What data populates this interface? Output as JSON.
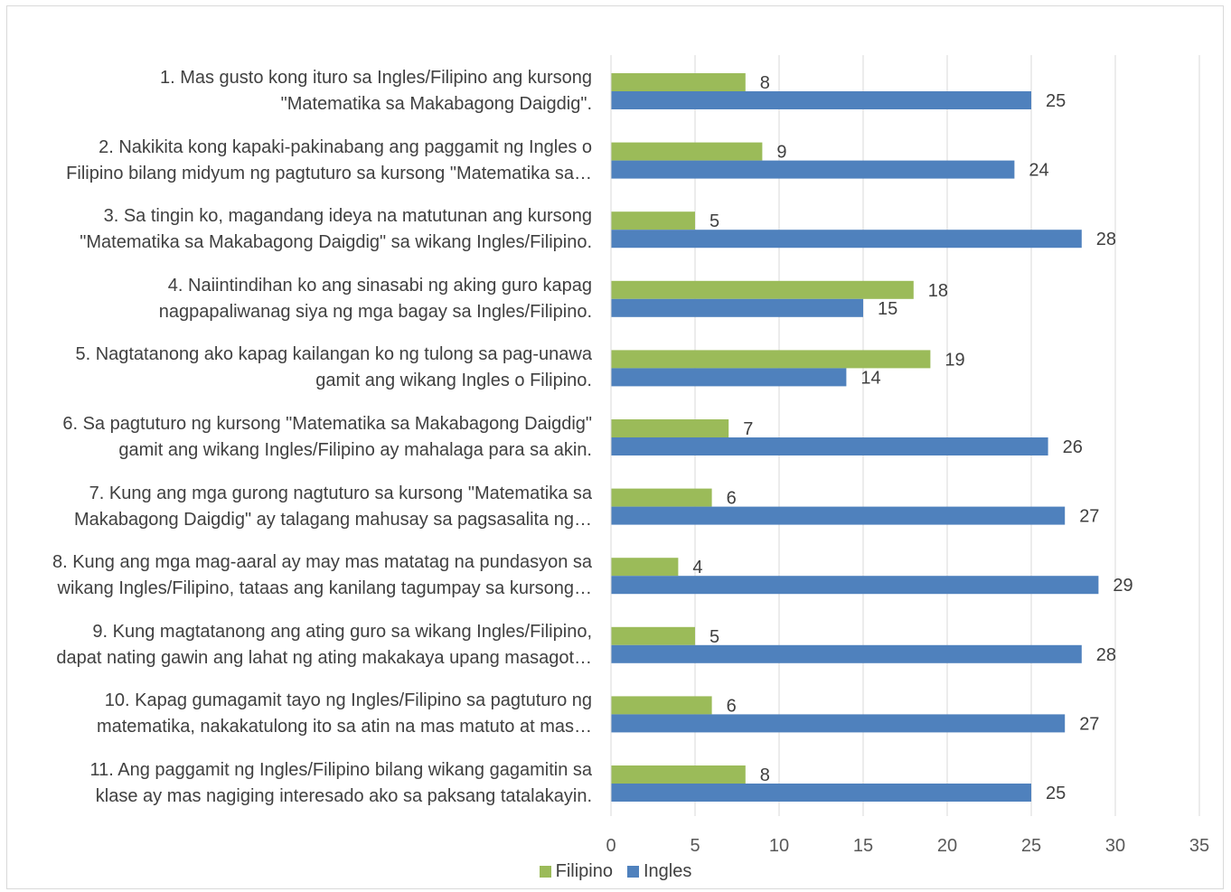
{
  "chart_data": {
    "type": "bar",
    "orientation": "horizontal",
    "title": "",
    "xlabel": "",
    "ylabel": "",
    "xlim": [
      0,
      35
    ],
    "x_ticks": [
      0,
      5,
      10,
      15,
      20,
      25,
      30,
      35
    ],
    "grid": "vertical",
    "legend_position": "bottom",
    "categories": [
      [
        "1. Mas gusto kong ituro sa Ingles/Filipino ang kursong",
        "\"Matematika sa Makabagong Daigdig\"."
      ],
      [
        "2. Nakikita kong kapaki-pakinabang ang paggamit ng Ingles o",
        "Filipino bilang midyum ng pagtuturo sa kursong \"Matematika sa…"
      ],
      [
        "3. Sa tingin ko, magandang ideya na matutunan ang kursong",
        "\"Matematika sa Makabagong Daigdig\" sa wikang Ingles/Filipino."
      ],
      [
        "4. Naiintindihan ko ang sinasabi ng aking guro kapag",
        "nagpapaliwanag siya ng mga bagay sa Ingles/Filipino."
      ],
      [
        "5. Nagtatanong ako kapag kailangan ko ng tulong sa pag-unawa",
        "gamit ang wikang Ingles o Filipino."
      ],
      [
        "6. Sa pagtuturo ng kursong \"Matematika sa Makabagong Daigdig\"",
        "gamit ang wikang Ingles/Filipino ay mahalaga para sa akin."
      ],
      [
        "7. Kung ang mga gurong nagtuturo sa kursong \"Matematika sa",
        "Makabagong Daigdig\" ay talagang mahusay sa pagsasalita ng…"
      ],
      [
        "8. Kung ang mga mag-aaral ay may mas matatag na pundasyon sa",
        "wikang Ingles/Filipino, tataas ang kanilang tagumpay sa kursong…"
      ],
      [
        "9. Kung magtatanong ang ating guro sa wikang Ingles/Filipino,",
        "dapat nating gawin ang lahat ng ating makakaya upang masagot…"
      ],
      [
        "10. Kapag gumagamit tayo ng Ingles/Filipino sa pagtuturo ng",
        "matematika, nakakatulong ito sa atin na mas matuto at mas…"
      ],
      [
        "11. Ang paggamit ng Ingles/Filipino bilang wikang gagamitin sa",
        "klase ay mas nagiging interesado ako sa paksang tatalakayin."
      ]
    ],
    "series": [
      {
        "name": "Filipino",
        "color": "#9bbb59",
        "values": [
          8,
          9,
          5,
          18,
          19,
          7,
          6,
          4,
          5,
          6,
          8
        ]
      },
      {
        "name": "Ingles",
        "color": "#4f81bd",
        "values": [
          25,
          24,
          28,
          15,
          14,
          26,
          27,
          29,
          28,
          27,
          25
        ]
      }
    ]
  }
}
